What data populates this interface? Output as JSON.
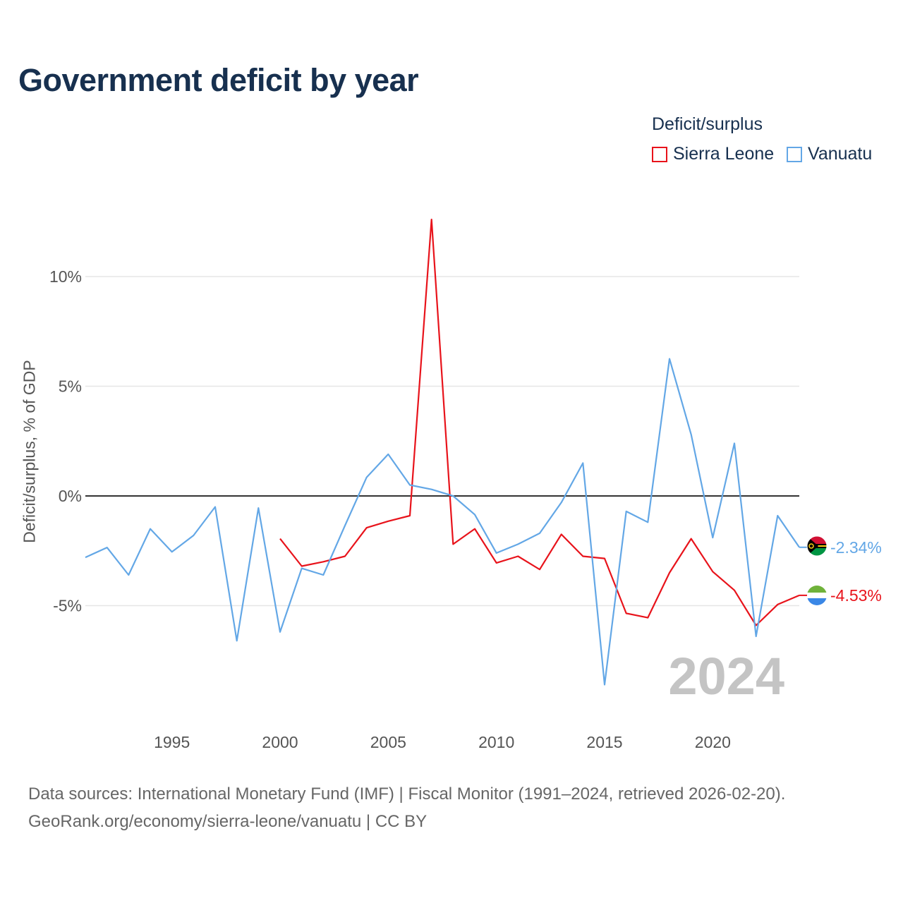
{
  "title": "Government deficit by year",
  "legend": {
    "title": "Deficit/surplus",
    "items": [
      {
        "label": "Sierra Leone",
        "color": "#e8131b"
      },
      {
        "label": "Vanuatu",
        "color": "#63a7e6"
      }
    ]
  },
  "source": {
    "line1": "Data sources: International Monetary Fund (IMF) | Fiscal Monitor (1991–2024, retrieved 2026-02-20).",
    "line2": "GeoRank.org/economy/sierra-leone/vanuatu | CC BY"
  },
  "chart_data": {
    "type": "line",
    "title": "Government deficit by year",
    "xlabel": "",
    "ylabel": "Deficit/surplus, % of GDP",
    "xlim": [
      1991,
      2024
    ],
    "ylim": [
      -10,
      13
    ],
    "x_ticks": [
      1995,
      2000,
      2005,
      2010,
      2015,
      2020
    ],
    "y_ticks": [
      {
        "value": 10,
        "label": "10%"
      },
      {
        "value": 5,
        "label": "5%"
      },
      {
        "value": 0,
        "label": "0%"
      },
      {
        "value": -5,
        "label": "-5%"
      }
    ],
    "year_watermark": "2024",
    "series": [
      {
        "name": "Sierra Leone",
        "color": "#e8131b",
        "end_label": "-4.53%",
        "flag": "sierra-leone",
        "points": [
          [
            2000,
            -1.95
          ],
          [
            2001,
            -3.2
          ],
          [
            2002,
            -3.0
          ],
          [
            2003,
            -2.75
          ],
          [
            2004,
            -1.45
          ],
          [
            2005,
            -1.15
          ],
          [
            2006,
            -0.9
          ],
          [
            2007,
            12.6
          ],
          [
            2008,
            -2.2
          ],
          [
            2009,
            -1.5
          ],
          [
            2010,
            -3.05
          ],
          [
            2011,
            -2.75
          ],
          [
            2012,
            -3.35
          ],
          [
            2013,
            -1.75
          ],
          [
            2014,
            -2.75
          ],
          [
            2015,
            -2.85
          ],
          [
            2016,
            -5.35
          ],
          [
            2017,
            -5.55
          ],
          [
            2018,
            -3.5
          ],
          [
            2019,
            -1.95
          ],
          [
            2020,
            -3.45
          ],
          [
            2021,
            -4.3
          ],
          [
            2022,
            -5.9
          ],
          [
            2023,
            -4.95
          ],
          [
            2024,
            -4.53
          ]
        ]
      },
      {
        "name": "Vanuatu",
        "color": "#63a7e6",
        "end_label": "-2.34%",
        "flag": "vanuatu",
        "points": [
          [
            1991,
            -2.8
          ],
          [
            1992,
            -2.35
          ],
          [
            1993,
            -3.6
          ],
          [
            1994,
            -1.5
          ],
          [
            1995,
            -2.55
          ],
          [
            1996,
            -1.8
          ],
          [
            1997,
            -0.5
          ],
          [
            1998,
            -6.6
          ],
          [
            1999,
            -0.55
          ],
          [
            2000,
            -6.2
          ],
          [
            2001,
            -3.3
          ],
          [
            2002,
            -3.6
          ],
          [
            2003,
            -1.35
          ],
          [
            2004,
            0.85
          ],
          [
            2005,
            1.9
          ],
          [
            2006,
            0.5
          ],
          [
            2007,
            0.3
          ],
          [
            2008,
            0.0
          ],
          [
            2009,
            -0.85
          ],
          [
            2010,
            -2.6
          ],
          [
            2011,
            -2.2
          ],
          [
            2012,
            -1.7
          ],
          [
            2013,
            -0.3
          ],
          [
            2014,
            1.5
          ],
          [
            2015,
            -8.6
          ],
          [
            2016,
            -0.7
          ],
          [
            2017,
            -1.2
          ],
          [
            2018,
            6.25
          ],
          [
            2019,
            2.8
          ],
          [
            2020,
            -1.9
          ],
          [
            2021,
            2.4
          ],
          [
            2022,
            -6.4
          ],
          [
            2023,
            -0.9
          ],
          [
            2024,
            -2.34
          ]
        ]
      }
    ]
  }
}
